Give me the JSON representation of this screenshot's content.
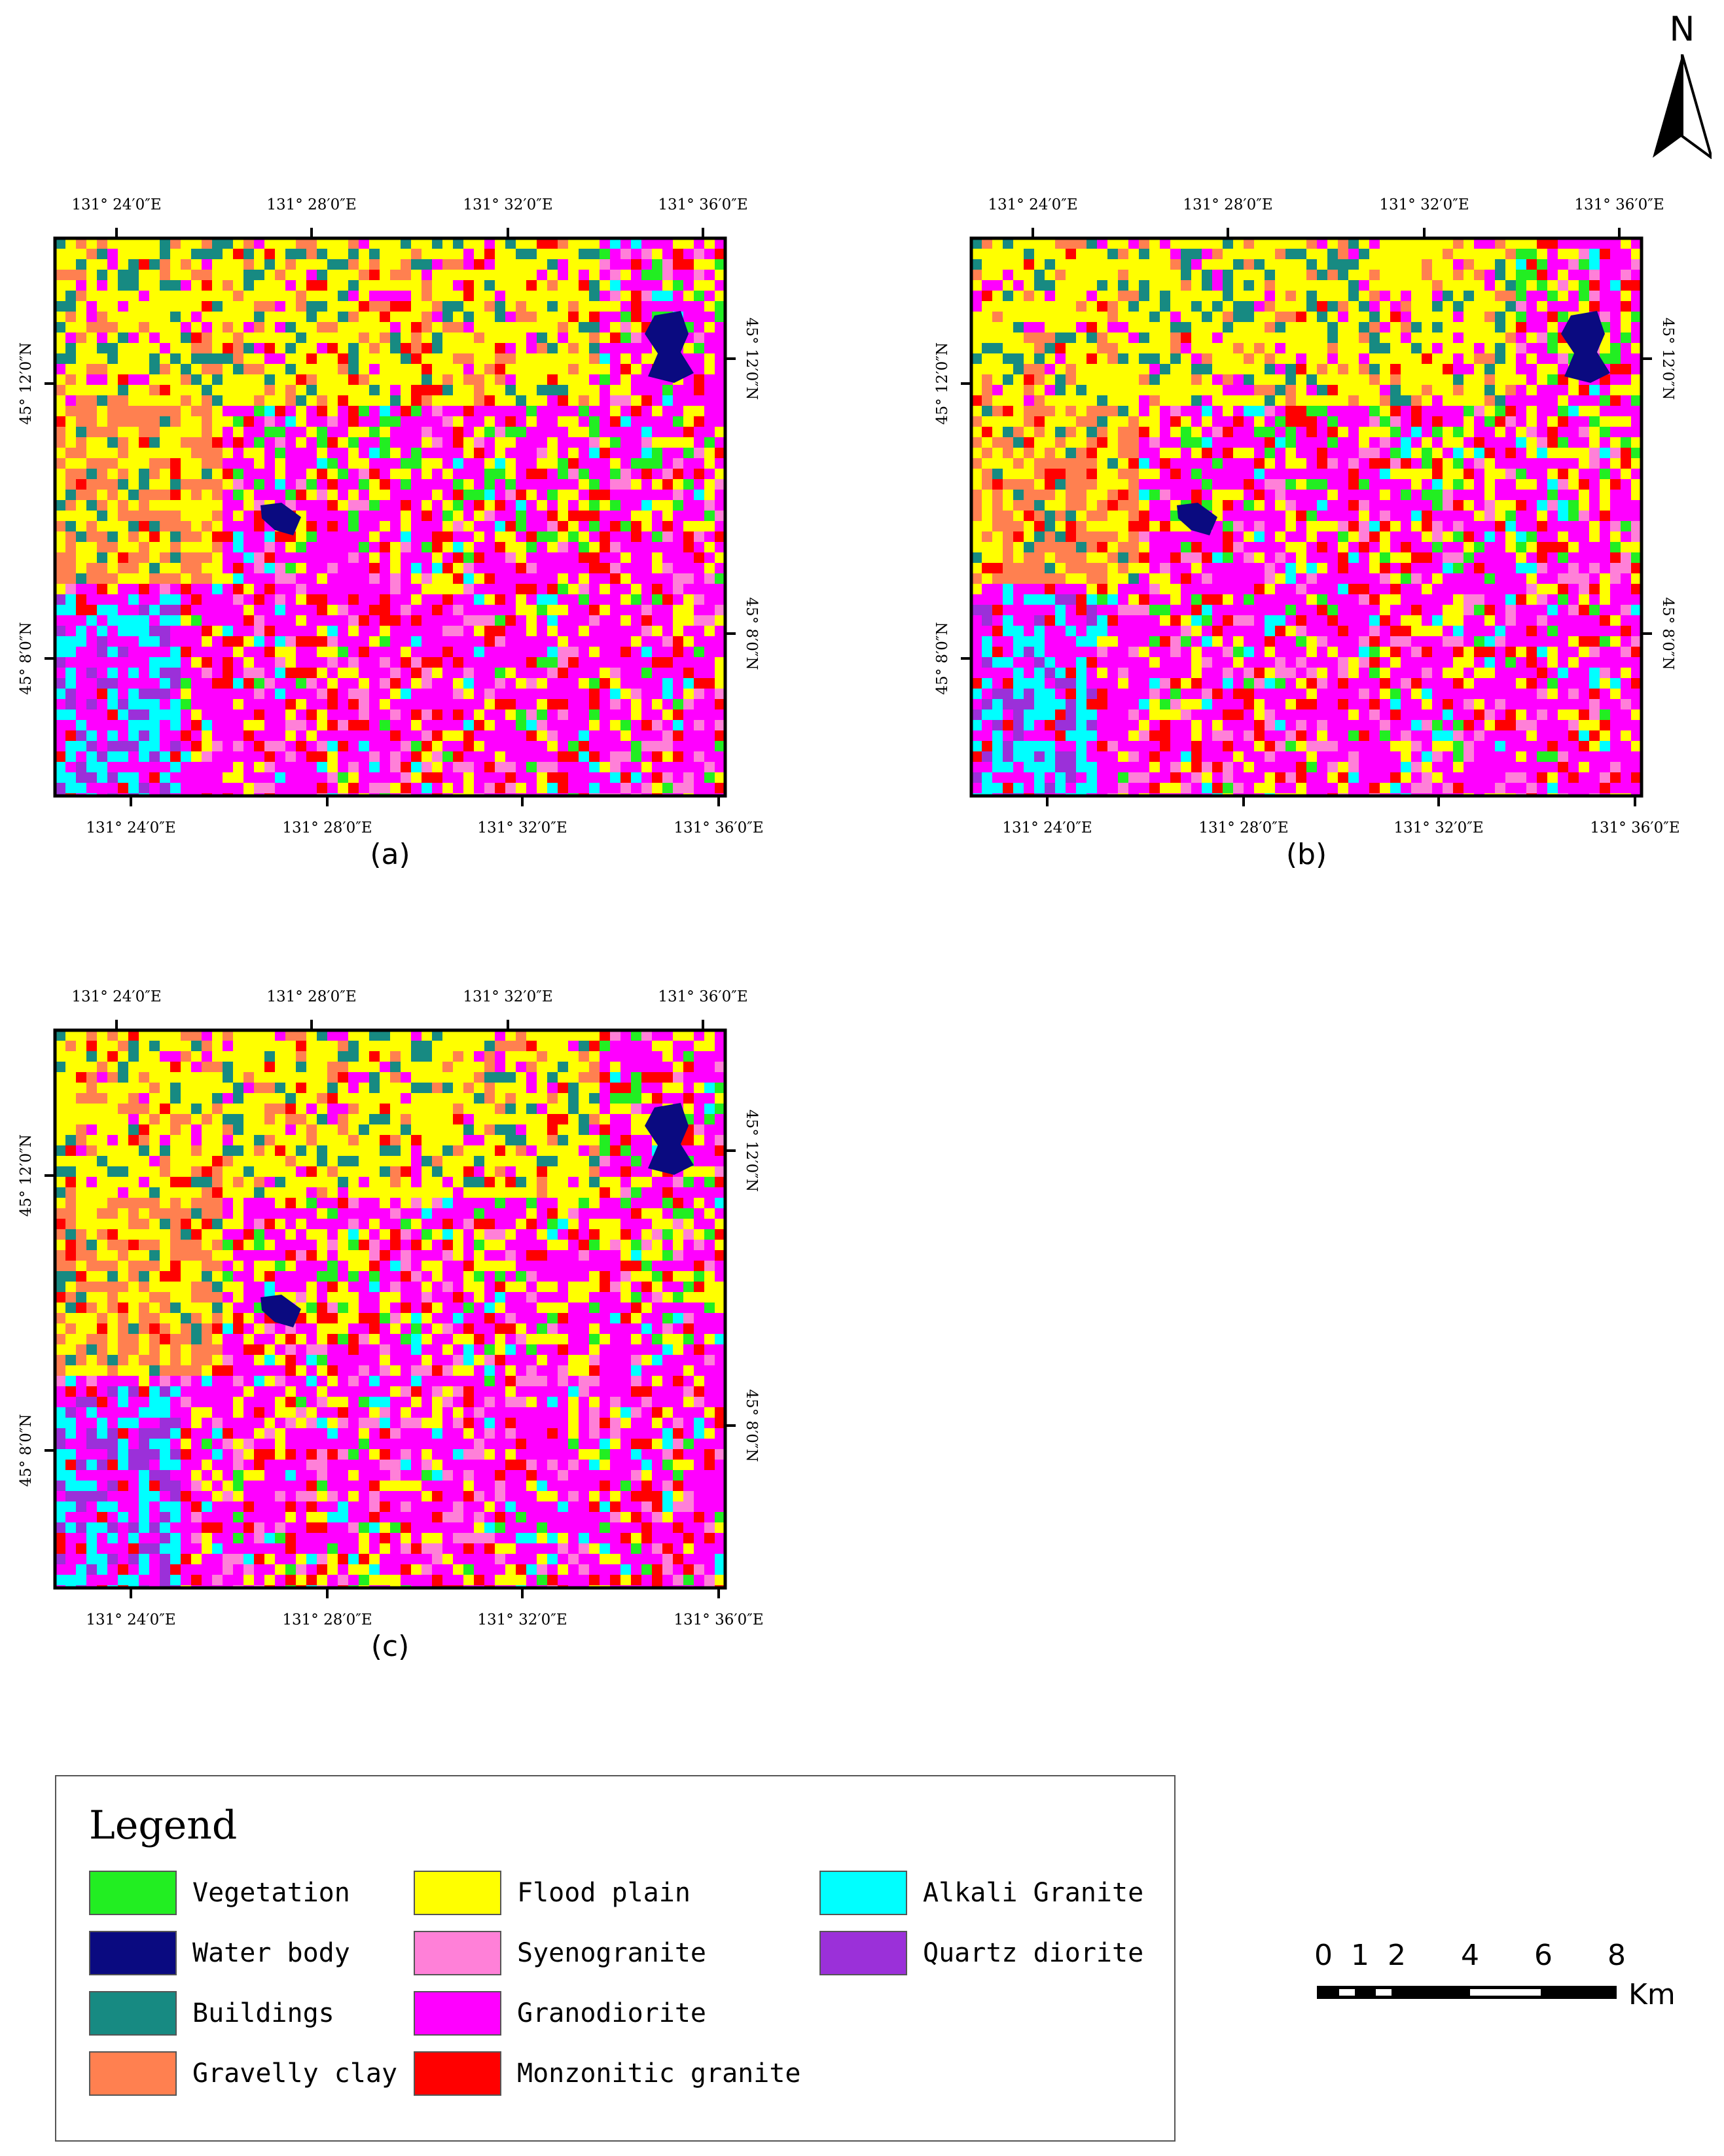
{
  "north_arrow": {
    "label": "N"
  },
  "maps": [
    {
      "caption": "(a)",
      "top_ticks": [
        "131° 24′0″E",
        "131° 28′0″E",
        "131° 32′0″E",
        "131° 36′0″E"
      ],
      "bottom_ticks": [
        "131° 24′0″E",
        "131° 28′0″E",
        "131° 32′0″E",
        "131° 36′0″E"
      ],
      "left_ticks": [
        "45° 12′0″N",
        "45° 8′0″N"
      ],
      "right_ticks": [
        "45° 12′0″N",
        "45° 8′0″N"
      ]
    },
    {
      "caption": "(b)",
      "top_ticks": [
        "131° 24′0″E",
        "131° 28′0″E",
        "131° 32′0″E",
        "131° 36′0″E"
      ],
      "bottom_ticks": [
        "131° 24′0″E",
        "131° 28′0″E",
        "131° 32′0″E",
        "131° 36′0″E"
      ],
      "left_ticks": [
        "45° 12′0″N",
        "45° 8′0″N"
      ],
      "right_ticks": [
        "45° 12′0″N",
        "45° 8′0″N"
      ]
    },
    {
      "caption": "(c)",
      "top_ticks": [
        "131° 24′0″E",
        "131° 28′0″E",
        "131° 32′0″E",
        "131° 36′0″E"
      ],
      "bottom_ticks": [
        "131° 24′0″E",
        "131° 28′0″E",
        "131° 32′0″E",
        "131° 36′0″E"
      ],
      "left_ticks": [
        "45° 12′0″N",
        "45° 8′0″N"
      ],
      "right_ticks": [
        "45° 12′0″N",
        "45° 8′0″N"
      ]
    }
  ],
  "legend": {
    "title": "Legend",
    "items": [
      {
        "label": "Vegetation",
        "color": "#22ee22"
      },
      {
        "label": "Water body",
        "color": "#0a0a80"
      },
      {
        "label": "Buildings",
        "color": "#178a82"
      },
      {
        "label": "Gravelly clay",
        "color": "#ff8050"
      },
      {
        "label": "Flood plain",
        "color": "#ffff00"
      },
      {
        "label": "Syenogranite",
        "color": "#ff80d8"
      },
      {
        "label": "Granodiorite",
        "color": "#ff00ff"
      },
      {
        "label": "Monzonitic granite",
        "color": "#ff0000"
      },
      {
        "label": "Alkali Granite",
        "color": "#00ffff"
      },
      {
        "label": "Quartz diorite",
        "color": "#9b30d9"
      }
    ]
  },
  "scale_bar": {
    "ticks": [
      "0",
      "1",
      "2",
      "4",
      "6",
      "8"
    ],
    "unit": "Km"
  }
}
